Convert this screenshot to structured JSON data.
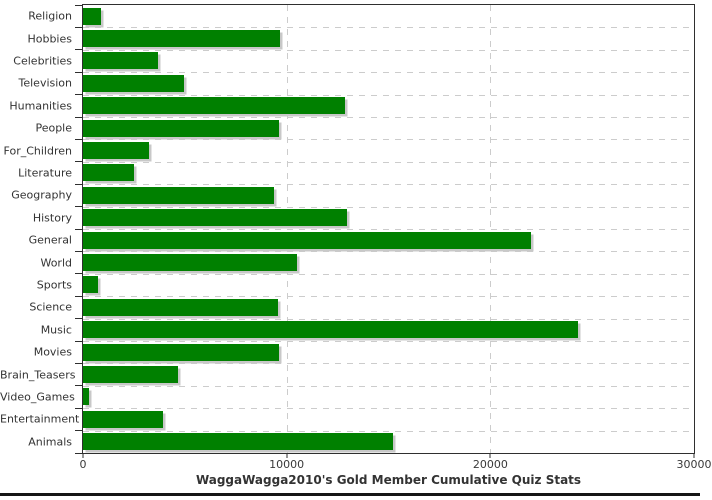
{
  "chart_data": {
    "type": "bar",
    "orientation": "horizontal",
    "title": "WaggaWagga2010's Gold Member Cumulative Quiz Stats",
    "categories": [
      "Religion",
      "Hobbies",
      "Celebrities",
      "Television",
      "Humanities",
      "People",
      "For_Children",
      "Literature",
      "Geography",
      "History",
      "General",
      "World",
      "Sports",
      "Science",
      "Music",
      "Movies",
      "Brain_Teasers",
      "Video_Games",
      "Entertainment",
      "Animals"
    ],
    "values": [
      900,
      9650,
      3700,
      4950,
      12850,
      9600,
      3250,
      2500,
      9400,
      12950,
      22000,
      10500,
      750,
      9550,
      24300,
      9600,
      4650,
      300,
      3950,
      15200
    ],
    "xlabel": "",
    "ylabel": "",
    "xlim": [
      0,
      30000
    ],
    "x_ticks": [
      0,
      10000,
      20000,
      30000
    ],
    "x_tick_labels": [
      "0",
      "10000",
      "20000",
      "30000"
    ],
    "grid": "dashed",
    "legend": "none",
    "bar_color": "#008000",
    "shadow_color": "#c8c8c8",
    "gridline_color": "#cccccc",
    "axis_color": "#2f2f2f",
    "label_color": "#333333"
  }
}
